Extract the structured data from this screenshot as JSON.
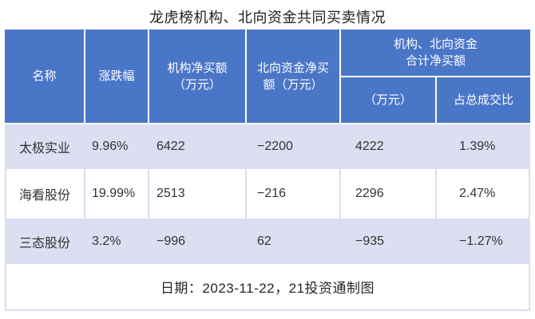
{
  "chart_data": {
    "type": "table",
    "title": "龙虎榜机构、北向资金共同买卖情况",
    "header": {
      "name": "名称",
      "change": "涨跌幅",
      "inst_net_buy": "机构净买额\n（万元）",
      "north_net_buy": "北向资金净买\n额（万元）",
      "group_label": "机构、北向资金\n合计净买额",
      "group_sub_amount": "（万元）",
      "group_sub_pct": "占总成交比"
    },
    "rows": [
      {
        "name": "太极实业",
        "change": "9.96%",
        "inst_net_buy": "6422",
        "north_net_buy": "−2200",
        "total_net_buy": "4222",
        "pct_of_turnover": "1.39%"
      },
      {
        "name": "海看股份",
        "change": "19.99%",
        "inst_net_buy": "2513",
        "north_net_buy": "−216",
        "total_net_buy": "2296",
        "pct_of_turnover": "2.47%"
      },
      {
        "name": "三态股份",
        "change": "3.2%",
        "inst_net_buy": "−996",
        "north_net_buy": "62",
        "total_net_buy": "−935",
        "pct_of_turnover": "−1.27%"
      }
    ],
    "footnote": "日期：2023-11-22，21投资通制图"
  },
  "colors": {
    "header_bg": "#4a76c8",
    "header_text": "#ffffff",
    "stripe_bg": "#dbdff1",
    "row_bg": "#ffffff",
    "body_text": "#333333",
    "title_text": "#1f1f1f"
  }
}
